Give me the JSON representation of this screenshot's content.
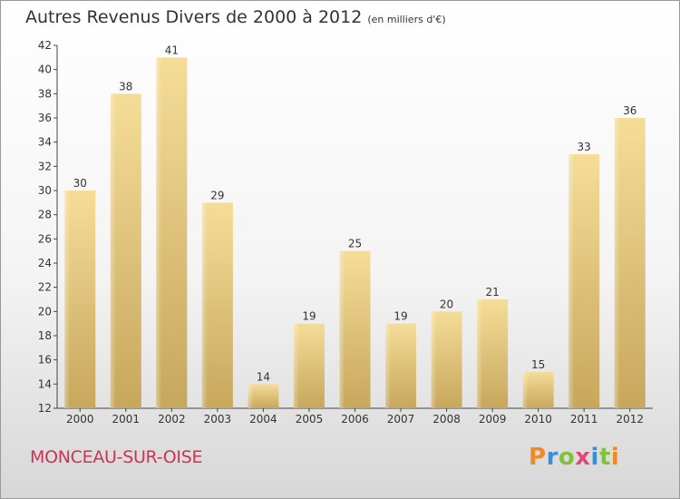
{
  "chart_data": {
    "type": "bar",
    "title": "Autres Revenus Divers de 2000 à 2012",
    "subtitle": "(en milliers d'€)",
    "categories": [
      "2000",
      "2001",
      "2002",
      "2003",
      "2004",
      "2005",
      "2006",
      "2007",
      "2008",
      "2009",
      "2010",
      "2011",
      "2012"
    ],
    "values": [
      30,
      38,
      41,
      29,
      14,
      19,
      25,
      19,
      20,
      21,
      15,
      33,
      36
    ],
    "ylim": [
      12,
      42
    ],
    "yticks": [
      12,
      14,
      16,
      18,
      20,
      22,
      24,
      26,
      28,
      30,
      32,
      34,
      36,
      38,
      40,
      42
    ],
    "grid": false,
    "bar_color": "#e3c57a"
  },
  "footer": {
    "place": "MONCEAU-SUR-OISE",
    "logo": {
      "letters": [
        {
          "text": "P",
          "color": "#f08a24"
        },
        {
          "text": "r",
          "color": "#3a8fd6"
        },
        {
          "text": "o",
          "color": "#7cc43a"
        },
        {
          "text": "x",
          "color": "#e04a7a"
        },
        {
          "text": "i",
          "color": "#3a8fd6"
        },
        {
          "text": "t",
          "color": "#7cc43a"
        },
        {
          "text": "i",
          "color": "#f08a24"
        }
      ]
    }
  }
}
